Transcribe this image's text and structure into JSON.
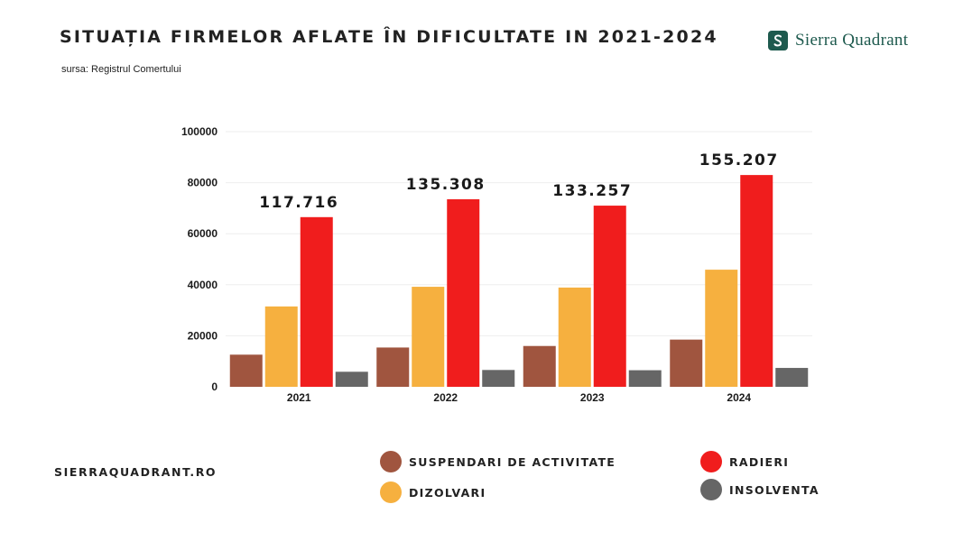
{
  "header": {
    "title": "SITUAȚIA FIRMELOR AFLATE ÎN DIFICULTATE IN 2021-2024",
    "source": "sursa: Registrul Comertului",
    "brand": "Sierra Quadrant",
    "website": "SIERRAQUADRANT.RO"
  },
  "colors": {
    "suspendari": "#a0553f",
    "dizolvari": "#f6b03f",
    "radieri": "#f01d1d",
    "insolventa": "#666666",
    "brand": "#1e5a4e"
  },
  "legend": [
    {
      "key": "suspendari",
      "label": "SUSPENDARI DE ACTIVITATE"
    },
    {
      "key": "radieri",
      "label": "RADIERI"
    },
    {
      "key": "dizolvari",
      "label": "DIZOLVARI"
    },
    {
      "key": "insolventa",
      "label": "INSOLVENTA"
    }
  ],
  "chart_data": {
    "type": "bar",
    "title": "SITUAȚIA FIRMELOR AFLATE ÎN DIFICULTATE IN 2021-2024",
    "categories": [
      "2021",
      "2022",
      "2023",
      "2024"
    ],
    "series": [
      {
        "key": "suspendari",
        "name": "SUSPENDARI DE ACTIVITATE",
        "values": [
          12600,
          15400,
          16000,
          18500
        ]
      },
      {
        "key": "dizolvari",
        "name": "DIZOLVARI",
        "values": [
          31500,
          39200,
          38900,
          45900
        ]
      },
      {
        "key": "radieri",
        "name": "RADIERI",
        "values": [
          66500,
          73500,
          71000,
          83000
        ]
      },
      {
        "key": "insolventa",
        "name": "INSOLVENTA",
        "values": [
          5900,
          6600,
          6500,
          7400
        ]
      }
    ],
    "totals": [
      "117.716",
      "135.308",
      "133.257",
      "155.207"
    ],
    "yticks": [
      "0",
      "20000",
      "40000",
      "60000",
      "80000",
      "100000"
    ],
    "ylim": [
      0,
      100000
    ],
    "xlabel": "",
    "ylabel": "",
    "grid": true
  }
}
